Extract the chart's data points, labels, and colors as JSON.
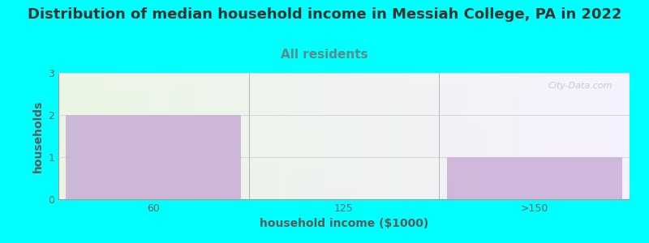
{
  "title": "Distribution of median household income in Messiah College, PA in 2022",
  "subtitle": "All residents",
  "xlabel": "household income ($1000)",
  "ylabel": "households",
  "categories": [
    "60",
    "125",
    ">150"
  ],
  "values": [
    2,
    0,
    1
  ],
  "bar_color": "#c9aed6",
  "bar_edge_color": "#b8a0cc",
  "background_color": "#00ffff",
  "title_color": "#333333",
  "subtitle_color": "#5a8a8a",
  "axis_label_color": "#5a5a5a",
  "tick_color": "#666666",
  "ylim": [
    0,
    3
  ],
  "yticks": [
    0,
    1,
    2,
    3
  ],
  "watermark": "City-Data.com",
  "title_fontsize": 13,
  "subtitle_fontsize": 11,
  "label_fontsize": 10,
  "tick_fontsize": 9,
  "grad_left_color": "#e8f5e0",
  "grad_right_color": "#f5f0ff"
}
